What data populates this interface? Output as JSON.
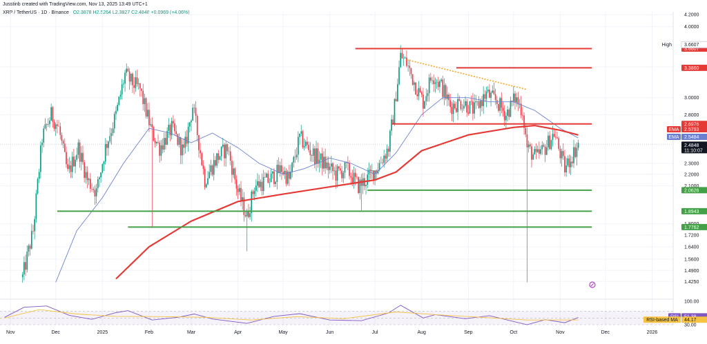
{
  "header": {
    "attribution": "Jusstinb created with TradingView.com, Nov 13, 2025 13:49 UTC+1",
    "symbol": "XRP / TetherUS · 1D · Binance",
    "ohlc": "O2.3878  H2.5264  L2.3827  C2.4848  +0.0969 (+4.06%)"
  },
  "colors": {
    "up": "#089981",
    "down": "#f23645",
    "ema200": "#e53935",
    "ema50": "#6b7fd1",
    "support": "#43a047",
    "resistance": "#e53935",
    "trend": "#f5a623",
    "rsi": "#7e57c2",
    "rsi_ma": "#f5c242"
  },
  "chart_data": [
    {
      "type": "candlestick",
      "title": "",
      "xlabel": "",
      "ylabel": "",
      "log_scale": true,
      "ylim": [
        1.36,
        4.25
      ],
      "x_range": [
        "2024-10-25",
        "2026-01-15"
      ],
      "x_ticks": [
        {
          "date": "2024-11-01",
          "label": "Nov"
        },
        {
          "date": "2024-12-01",
          "label": "Dec"
        },
        {
          "date": "2025-01-01",
          "label": "2025"
        },
        {
          "date": "2025-02-01",
          "label": "Feb"
        },
        {
          "date": "2025-03-01",
          "label": "Mar"
        },
        {
          "date": "2025-04-01",
          "label": "Apr"
        },
        {
          "date": "2025-05-01",
          "label": "May"
        },
        {
          "date": "2025-06-01",
          "label": "Jun"
        },
        {
          "date": "2025-07-01",
          "label": "Jul"
        },
        {
          "date": "2025-08-01",
          "label": "Aug"
        },
        {
          "date": "2025-09-01",
          "label": "Sep"
        },
        {
          "date": "2025-10-01",
          "label": "Oct"
        },
        {
          "date": "2025-11-01",
          "label": "Nov"
        },
        {
          "date": "2025-12-01",
          "label": "Dec"
        },
        {
          "date": "2026-01-01",
          "label": "2026"
        }
      ],
      "y_ticks": [
        4.2,
        4.0,
        3.4,
        3.0,
        2.8,
        2.3,
        2.2,
        2.1,
        1.8,
        1.72,
        1.64,
        1.56,
        1.49,
        1.425
      ],
      "y_tick_labels": [
        "4.2000",
        "4.0000",
        "3.4000",
        "3.0000",
        "2.8000",
        "2.3000",
        "2.2000",
        "2.1000",
        "1.8000",
        "1.7200",
        "1.6400",
        "1.5600",
        "1.4900",
        "1.4250"
      ],
      "close_path": [
        [
          "2024-11-09",
          1.45
        ],
        [
          "2024-11-16",
          1.75
        ],
        [
          "2024-11-22",
          2.55
        ],
        [
          "2024-11-28",
          2.8
        ],
        [
          "2024-12-03",
          2.65
        ],
        [
          "2024-12-09",
          2.2
        ],
        [
          "2024-12-16",
          2.45
        ],
        [
          "2024-12-22",
          2.15
        ],
        [
          "2024-12-28",
          2.05
        ],
        [
          "2025-01-03",
          2.45
        ],
        [
          "2025-01-10",
          2.8
        ],
        [
          "2025-01-16",
          3.3
        ],
        [
          "2025-01-20",
          3.2
        ],
        [
          "2025-01-26",
          3.1
        ],
        [
          "2025-02-03",
          2.6
        ],
        [
          "2025-02-08",
          2.45
        ],
        [
          "2025-02-16",
          2.65
        ],
        [
          "2025-02-24",
          2.4
        ],
        [
          "2025-03-02",
          2.9
        ],
        [
          "2025-03-05",
          2.6
        ],
        [
          "2025-03-10",
          2.15
        ],
        [
          "2025-03-18",
          2.35
        ],
        [
          "2025-03-25",
          2.45
        ],
        [
          "2025-04-01",
          2.05
        ],
        [
          "2025-04-07",
          1.85
        ],
        [
          "2025-04-12",
          2.1
        ],
        [
          "2025-04-22",
          2.15
        ],
        [
          "2025-04-30",
          2.25
        ],
        [
          "2025-05-05",
          2.15
        ],
        [
          "2025-05-12",
          2.55
        ],
        [
          "2025-05-20",
          2.4
        ],
        [
          "2025-05-28",
          2.3
        ],
        [
          "2025-06-05",
          2.2
        ],
        [
          "2025-06-12",
          2.25
        ],
        [
          "2025-06-20",
          2.1
        ],
        [
          "2025-06-25",
          2.15
        ],
        [
          "2025-07-02",
          2.25
        ],
        [
          "2025-07-10",
          2.45
        ],
        [
          "2025-07-14",
          2.9
        ],
        [
          "2025-07-18",
          3.55
        ],
        [
          "2025-07-22",
          3.45
        ],
        [
          "2025-07-28",
          3.15
        ],
        [
          "2025-08-02",
          2.95
        ],
        [
          "2025-08-08",
          3.3
        ],
        [
          "2025-08-14",
          3.15
        ],
        [
          "2025-08-20",
          2.9
        ],
        [
          "2025-08-28",
          2.95
        ],
        [
          "2025-09-05",
          2.85
        ],
        [
          "2025-09-13",
          3.05
        ],
        [
          "2025-09-20",
          2.95
        ],
        [
          "2025-09-26",
          2.8
        ],
        [
          "2025-10-02",
          3.0
        ],
        [
          "2025-10-07",
          2.85
        ],
        [
          "2025-10-10",
          2.45
        ],
        [
          "2025-10-16",
          2.35
        ],
        [
          "2025-10-22",
          2.45
        ],
        [
          "2025-10-28",
          2.6
        ],
        [
          "2025-11-04",
          2.25
        ],
        [
          "2025-11-08",
          2.35
        ],
        [
          "2025-11-13",
          2.4848
        ]
      ],
      "wicks": [
        {
          "date": "2025-10-10",
          "low": 1.42
        },
        {
          "date": "2025-04-07",
          "low": 1.61
        },
        {
          "date": "2025-02-03",
          "low": 1.77
        },
        {
          "date": "2025-06-22",
          "low": 1.9
        }
      ],
      "series": [
        {
          "key": "ema50",
          "points": [
            [
              "2024-12-01",
              1.42
            ],
            [
              "2024-12-15",
              1.75
            ],
            [
              "2025-01-01",
              2.0
            ],
            [
              "2025-01-15",
              2.3
            ],
            [
              "2025-02-01",
              2.65
            ],
            [
              "2025-02-15",
              2.6
            ],
            [
              "2025-03-01",
              2.5
            ],
            [
              "2025-03-15",
              2.6
            ],
            [
              "2025-04-01",
              2.45
            ],
            [
              "2025-04-15",
              2.3
            ],
            [
              "2025-05-01",
              2.2
            ],
            [
              "2025-05-15",
              2.25
            ],
            [
              "2025-06-01",
              2.35
            ],
            [
              "2025-06-15",
              2.3
            ],
            [
              "2025-07-01",
              2.2
            ],
            [
              "2025-07-15",
              2.4
            ],
            [
              "2025-08-01",
              2.8
            ],
            [
              "2025-08-15",
              3.0
            ],
            [
              "2025-09-01",
              3.0
            ],
            [
              "2025-09-15",
              2.95
            ],
            [
              "2025-10-01",
              2.95
            ],
            [
              "2025-10-15",
              2.85
            ],
            [
              "2025-11-01",
              2.65
            ],
            [
              "2025-11-13",
              2.5484
            ]
          ]
        },
        {
          "key": "ema200",
          "points": [
            [
              "2025-01-10",
              1.44
            ],
            [
              "2025-02-01",
              1.64
            ],
            [
              "2025-03-01",
              1.82
            ],
            [
              "2025-04-01",
              1.97
            ],
            [
              "2025-05-01",
              2.03
            ],
            [
              "2025-06-01",
              2.09
            ],
            [
              "2025-07-01",
              2.15
            ],
            [
              "2025-07-15",
              2.22
            ],
            [
              "2025-08-01",
              2.42
            ],
            [
              "2025-09-01",
              2.58
            ],
            [
              "2025-10-01",
              2.66
            ],
            [
              "2025-10-15",
              2.68
            ],
            [
              "2025-11-01",
              2.63
            ],
            [
              "2025-11-13",
              2.5793
            ]
          ]
        }
      ],
      "levels": [
        {
          "name": "resistance-3-6607",
          "price": 3.6607,
          "label": "3.6607",
          "start": "2025-06-18",
          "end": "2025-11-22",
          "kind": "resistance"
        },
        {
          "name": "resistance-3-3860",
          "price": 3.386,
          "label": "3.3860",
          "start": "2025-08-24",
          "end": "2025-11-22",
          "kind": "resistance"
        },
        {
          "name": "resistance-2-6976",
          "price": 2.6976,
          "label": "2.6976",
          "start": "2025-07-12",
          "end": "2025-11-22",
          "kind": "resistance"
        },
        {
          "name": "support-2-0626",
          "price": 2.0626,
          "label": "2.0626",
          "start": "2025-06-26",
          "end": "2025-11-22",
          "kind": "support"
        },
        {
          "name": "support-1-8943",
          "price": 1.8943,
          "label": "1.8943",
          "start": "2024-12-02",
          "end": "2025-11-22",
          "kind": "support"
        },
        {
          "name": "support-1-7762",
          "price": 1.7762,
          "label": "1.7762",
          "start": "2025-01-18",
          "end": "2025-11-22",
          "kind": "support"
        }
      ],
      "trendline": {
        "from": [
          "2025-07-22",
          3.5
        ],
        "to": [
          "2025-10-10",
          3.1
        ]
      },
      "price_badges": [
        {
          "name": "high-badge",
          "tag": "High",
          "label": "3.6607",
          "price": 3.72,
          "style": "high"
        },
        {
          "name": "ema200-badge",
          "tag": "EMA",
          "label": "2.5793",
          "price": 2.64,
          "style": "ema200"
        },
        {
          "name": "ema50-badge",
          "tag": "EMA",
          "label": "2.5484",
          "price": 2.56,
          "style": "ema50"
        },
        {
          "name": "last-price-badge",
          "label": "2.4848",
          "sub": "11:10:07",
          "price": 2.47,
          "style": "last"
        }
      ]
    },
    {
      "type": "line",
      "title": "RSI",
      "ylim": [
        30,
        100
      ],
      "y_ticks": [
        100,
        30
      ],
      "y_tick_labels": [
        "100.00",
        "30.00"
      ],
      "band": [
        30,
        70
      ],
      "series": [
        {
          "key": "rsi",
          "name": "RSI",
          "points": [
            [
              "2024-10-28",
              52
            ],
            [
              "2024-11-10",
              82
            ],
            [
              "2024-11-25",
              86
            ],
            [
              "2024-12-10",
              58
            ],
            [
              "2024-12-25",
              46
            ],
            [
              "2025-01-10",
              66
            ],
            [
              "2025-01-18",
              72
            ],
            [
              "2025-02-03",
              44
            ],
            [
              "2025-02-20",
              52
            ],
            [
              "2025-03-03",
              62
            ],
            [
              "2025-03-15",
              47
            ],
            [
              "2025-04-07",
              34
            ],
            [
              "2025-04-25",
              55
            ],
            [
              "2025-05-12",
              63
            ],
            [
              "2025-06-01",
              44
            ],
            [
              "2025-06-22",
              42
            ],
            [
              "2025-07-10",
              65
            ],
            [
              "2025-07-18",
              88
            ],
            [
              "2025-08-02",
              50
            ],
            [
              "2025-08-10",
              60
            ],
            [
              "2025-08-30",
              48
            ],
            [
              "2025-09-15",
              57
            ],
            [
              "2025-10-10",
              30
            ],
            [
              "2025-10-22",
              45
            ],
            [
              "2025-11-04",
              36
            ],
            [
              "2025-11-13",
              51.38
            ]
          ]
        },
        {
          "key": "rsi_ma",
          "name": "RSI-based MA",
          "points": [
            [
              "2024-10-28",
              50
            ],
            [
              "2024-11-20",
              75
            ],
            [
              "2024-12-15",
              62
            ],
            [
              "2025-01-10",
              55
            ],
            [
              "2025-02-10",
              54
            ],
            [
              "2025-03-10",
              52
            ],
            [
              "2025-04-10",
              44
            ],
            [
              "2025-05-10",
              54
            ],
            [
              "2025-06-10",
              48
            ],
            [
              "2025-07-15",
              68
            ],
            [
              "2025-08-10",
              60
            ],
            [
              "2025-09-10",
              52
            ],
            [
              "2025-10-10",
              44
            ],
            [
              "2025-11-13",
              44.17
            ]
          ]
        }
      ],
      "value_badges": [
        {
          "name": "rsi-badge",
          "tag": "RSI",
          "label": "51.38",
          "value": 55,
          "style": "rsi"
        },
        {
          "name": "rsi-ma-badge",
          "tag": "RSI-based MA",
          "label": "44.17",
          "value": 45,
          "style": "rsi_ma"
        }
      ]
    }
  ]
}
